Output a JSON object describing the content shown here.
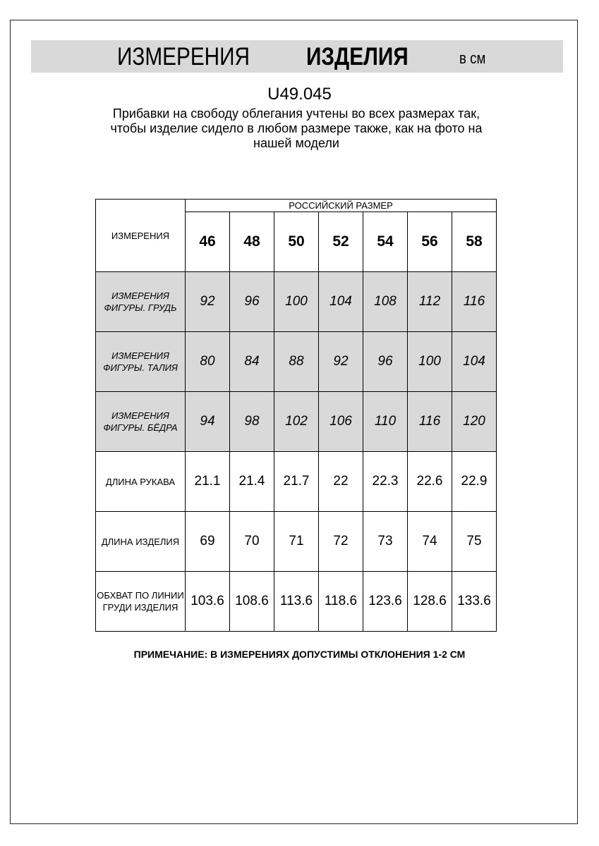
{
  "title": {
    "part1": "ИЗМЕРЕНИЯ",
    "part2": "ИЗДЕЛИЯ",
    "unit": "в см"
  },
  "article": "U49.045",
  "description": "Прибавки на свободу облегания учтены во всех размерах так, чтобы изделие сидело в любом размере также, как на фото на нашей модели",
  "table": {
    "corner": "ИЗМЕРЕНИЯ",
    "group_header": "РОССИЙСКИЙ РАЗМЕР",
    "sizes": [
      "46",
      "48",
      "50",
      "52",
      "54",
      "56",
      "58"
    ],
    "rows": [
      {
        "label": "ИЗМЕРЕНИЯ ФИГУРЫ. ГРУДЬ",
        "values": [
          "92",
          "96",
          "100",
          "104",
          "108",
          "112",
          "116"
        ],
        "shaded": true
      },
      {
        "label": "ИЗМЕРЕНИЯ ФИГУРЫ. ТАЛИЯ",
        "values": [
          "80",
          "84",
          "88",
          "92",
          "96",
          "100",
          "104"
        ],
        "shaded": true
      },
      {
        "label": "ИЗМЕРЕНИЯ ФИГУРЫ. БЁДРА",
        "values": [
          "94",
          "98",
          "102",
          "106",
          "110",
          "116",
          "120"
        ],
        "shaded": true
      },
      {
        "label": "ДЛИНА РУКАВА",
        "values": [
          "21.1",
          "21.4",
          "21.7",
          "22",
          "22.3",
          "22.6",
          "22.9"
        ],
        "shaded": false
      },
      {
        "label": "ДЛИНА ИЗДЕЛИЯ",
        "values": [
          "69",
          "70",
          "71",
          "72",
          "73",
          "74",
          "75"
        ],
        "shaded": false
      },
      {
        "label": "ОБХВАТ ПО ЛИНИИ ГРУДИ ИЗДЕЛИЯ",
        "values": [
          "103.6",
          "108.6",
          "113.6",
          "118.6",
          "123.6",
          "128.6",
          "133.6"
        ],
        "shaded": false
      }
    ]
  },
  "note": "ПРИМЕЧАНИЕ: В ИЗМЕРЕНИЯХ ДОПУСТИМЫ ОТКЛОНЕНИЯ 1-2 СМ",
  "colors": {
    "shade": "#d9d9d9"
  }
}
